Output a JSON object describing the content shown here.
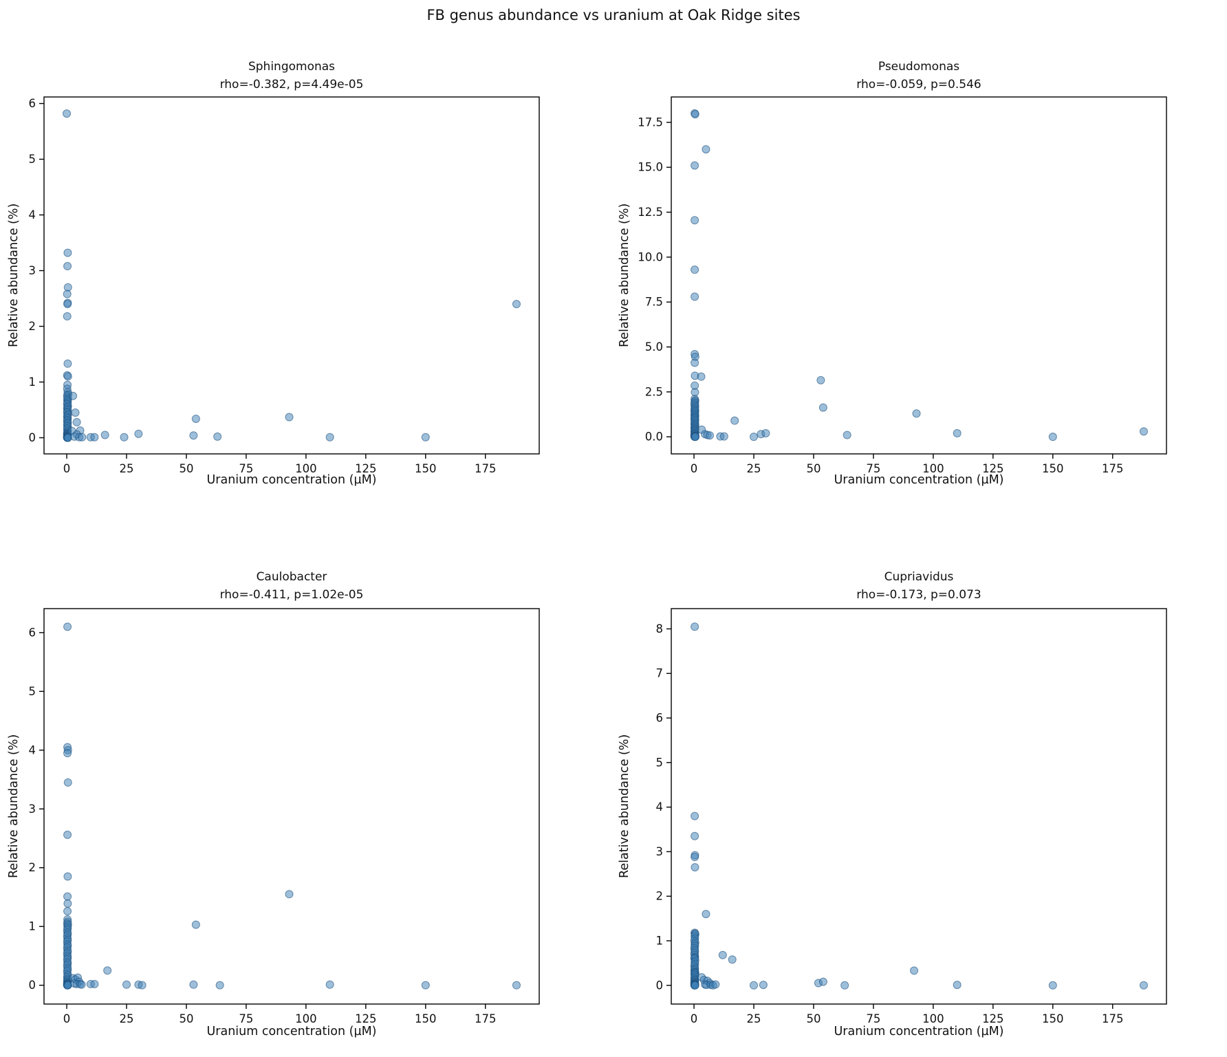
{
  "figure": {
    "title": "FB genus abundance vs uranium at Oak Ridge sites"
  },
  "style": {
    "marker_fill": "#3d7fb5",
    "marker_fill_opacity": 0.5,
    "marker_edge": "#1c4f7c",
    "marker_edge_opacity": 0.6,
    "spine_color": "#000000",
    "text_color": "#111111",
    "background": "#ffffff"
  },
  "chart_data": [
    {
      "type": "scatter",
      "title": "Sphingomonas",
      "subtitle": "rho=-0.382, p=4.49e-05",
      "rho": -0.382,
      "p_value": "4.49e-05",
      "xlabel": "Uranium concentration (µM)",
      "ylabel": "Relative abundance (%)",
      "xlim": [
        -9.5,
        197.5
      ],
      "ylim": [
        -0.29,
        6.13
      ],
      "xticks": [
        0,
        25,
        50,
        75,
        100,
        125,
        150,
        175
      ],
      "xtick_labels": [
        "0",
        "25",
        "50",
        "75",
        "100",
        "125",
        "150",
        "175"
      ],
      "yticks": [
        0,
        1,
        2,
        3,
        4,
        5,
        6
      ],
      "ytick_labels": [
        "0",
        "1",
        "2",
        "3",
        "4",
        "5",
        "6"
      ],
      "grid": false,
      "points": [
        [
          0,
          5.82
        ],
        [
          0.4,
          3.32
        ],
        [
          0.3,
          3.08
        ],
        [
          0.5,
          2.7
        ],
        [
          0.2,
          2.58
        ],
        [
          0.4,
          2.42
        ],
        [
          0.3,
          2.4
        ],
        [
          0.2,
          2.18
        ],
        [
          0.4,
          1.33
        ],
        [
          0.2,
          1.12
        ],
        [
          0.5,
          1.1
        ],
        [
          0.3,
          0.95
        ],
        [
          0.2,
          0.88
        ],
        [
          0.4,
          0.82
        ],
        [
          0.6,
          0.78
        ],
        [
          0.2,
          0.76
        ],
        [
          0.3,
          0.73
        ],
        [
          0.5,
          0.7
        ],
        [
          0.2,
          0.68
        ],
        [
          0.4,
          0.65
        ],
        [
          0.3,
          0.62
        ],
        [
          0.2,
          0.6
        ],
        [
          0.5,
          0.57
        ],
        [
          0.3,
          0.55
        ],
        [
          0.2,
          0.52
        ],
        [
          0.4,
          0.5
        ],
        [
          0.3,
          0.47
        ],
        [
          0.2,
          0.45
        ],
        [
          0.5,
          0.42
        ],
        [
          0.3,
          0.4
        ],
        [
          0.2,
          0.37
        ],
        [
          0.4,
          0.35
        ],
        [
          0.3,
          0.32
        ],
        [
          0.2,
          0.3
        ],
        [
          0.4,
          0.27
        ],
        [
          0.3,
          0.25
        ],
        [
          0.2,
          0.22
        ],
        [
          0.4,
          0.2
        ],
        [
          0.3,
          0.17
        ],
        [
          0.2,
          0.15
        ],
        [
          0.4,
          0.12
        ],
        [
          0.3,
          0.1
        ],
        [
          0.2,
          0.08
        ],
        [
          0.3,
          0.07
        ],
        [
          0.2,
          0.06
        ],
        [
          0.4,
          0.05
        ],
        [
          0.3,
          0.04
        ],
        [
          0.2,
          0.03
        ],
        [
          0.3,
          0.02
        ],
        [
          0.2,
          0.02
        ],
        [
          0.4,
          0.01
        ],
        [
          0.3,
          0.01
        ],
        [
          0.2,
          0.005
        ],
        [
          0.3,
          0.005
        ],
        [
          0.2,
          0
        ],
        [
          0.3,
          0
        ],
        [
          0.4,
          0
        ],
        [
          0.5,
          0
        ],
        [
          2.6,
          0.75
        ],
        [
          3.6,
          0.45
        ],
        [
          4.2,
          0.28
        ],
        [
          2.2,
          0.12
        ],
        [
          5.6,
          0.13
        ],
        [
          4.2,
          0.06
        ],
        [
          3.2,
          0.02
        ],
        [
          5.2,
          0.01
        ],
        [
          6.4,
          0.01
        ],
        [
          10,
          0.01
        ],
        [
          11.6,
          0.01
        ],
        [
          16,
          0.05
        ],
        [
          24,
          0.01
        ],
        [
          30,
          0.07
        ],
        [
          53,
          0.04
        ],
        [
          54,
          0.34
        ],
        [
          63,
          0.02
        ],
        [
          93,
          0.37
        ],
        [
          110,
          0.01
        ],
        [
          150,
          0.01
        ],
        [
          188,
          2.4
        ]
      ]
    },
    {
      "type": "scatter",
      "title": "Pseudomonas",
      "subtitle": "rho=-0.059, p=0.546",
      "rho": -0.059,
      "p_value": "0.546",
      "xlabel": "Uranium concentration (µM)",
      "ylabel": "Relative abundance (%)",
      "xlim": [
        -9.5,
        197.5
      ],
      "ylim": [
        -0.95,
        18.95
      ],
      "xticks": [
        0,
        25,
        50,
        75,
        100,
        125,
        150,
        175
      ],
      "xtick_labels": [
        "0",
        "25",
        "50",
        "75",
        "100",
        "125",
        "150",
        "175"
      ],
      "yticks": [
        0,
        2.5,
        5,
        7.5,
        10,
        12.5,
        15,
        17.5
      ],
      "ytick_labels": [
        "0.0",
        "2.5",
        "5.0",
        "7.5",
        "10.0",
        "12.5",
        "15.0",
        "17.5"
      ],
      "grid": false,
      "points": [
        [
          0.3,
          18.0
        ],
        [
          0.5,
          17.95
        ],
        [
          5,
          16.0
        ],
        [
          0.3,
          15.1
        ],
        [
          0.3,
          12.05
        ],
        [
          0.3,
          9.3
        ],
        [
          0.3,
          7.8
        ],
        [
          0.3,
          4.6
        ],
        [
          0.5,
          4.45
        ],
        [
          0.3,
          4.12
        ],
        [
          0.4,
          3.4
        ],
        [
          3,
          3.35
        ],
        [
          0.3,
          2.85
        ],
        [
          0.4,
          2.48
        ],
        [
          0.3,
          2.1
        ],
        [
          0.5,
          2.02
        ],
        [
          0.3,
          1.95
        ],
        [
          0.4,
          1.88
        ],
        [
          0.2,
          1.8
        ],
        [
          0.5,
          1.72
        ],
        [
          0.3,
          1.64
        ],
        [
          0.4,
          1.56
        ],
        [
          0.2,
          1.5
        ],
        [
          0.5,
          1.44
        ],
        [
          0.3,
          1.38
        ],
        [
          0.4,
          1.3
        ],
        [
          0.2,
          1.24
        ],
        [
          0.5,
          1.18
        ],
        [
          0.3,
          1.12
        ],
        [
          0.4,
          1.06
        ],
        [
          0.2,
          1.0
        ],
        [
          0.5,
          0.94
        ],
        [
          0.3,
          0.88
        ],
        [
          0.4,
          0.8
        ],
        [
          0.2,
          0.74
        ],
        [
          0.5,
          0.68
        ],
        [
          0.3,
          0.62
        ],
        [
          0.4,
          0.56
        ],
        [
          0.2,
          0.5
        ],
        [
          0.5,
          0.45
        ],
        [
          0.3,
          0.4
        ],
        [
          0.4,
          0.35
        ],
        [
          0.2,
          0.3
        ],
        [
          0.5,
          0.25
        ],
        [
          0.3,
          0.2
        ],
        [
          0.4,
          0.16
        ],
        [
          0.2,
          0.12
        ],
        [
          0.5,
          0.08
        ],
        [
          0.3,
          0.05
        ],
        [
          0.4,
          0.03
        ],
        [
          0.2,
          0.02
        ],
        [
          0.5,
          0.01
        ],
        [
          0.3,
          0
        ],
        [
          0.4,
          0
        ],
        [
          0.6,
          0
        ],
        [
          3.2,
          0.4
        ],
        [
          4.6,
          0.15
        ],
        [
          5.6,
          0.1
        ],
        [
          6.6,
          0.08
        ],
        [
          11,
          0.02
        ],
        [
          12.6,
          0.02
        ],
        [
          17,
          0.9
        ],
        [
          25,
          0.0
        ],
        [
          28,
          0.15
        ],
        [
          30,
          0.2
        ],
        [
          53,
          3.15
        ],
        [
          54,
          1.63
        ],
        [
          64,
          0.1
        ],
        [
          93,
          1.3
        ],
        [
          110,
          0.2
        ],
        [
          150,
          0.0
        ],
        [
          188,
          0.3
        ]
      ]
    },
    {
      "type": "scatter",
      "title": "Caulobacter",
      "subtitle": "rho=-0.411, p=1.02e-05",
      "rho": -0.411,
      "p_value": "1.02e-05",
      "xlabel": "Uranium concentration (µM)",
      "ylabel": "Relative abundance (%)",
      "xlim": [
        -9.5,
        197.5
      ],
      "ylim": [
        -0.32,
        6.42
      ],
      "xticks": [
        0,
        25,
        50,
        75,
        100,
        125,
        150,
        175
      ],
      "xtick_labels": [
        "0",
        "25",
        "50",
        "75",
        "100",
        "125",
        "150",
        "175"
      ],
      "yticks": [
        0,
        1,
        2,
        3,
        4,
        5,
        6
      ],
      "ytick_labels": [
        "0",
        "1",
        "2",
        "3",
        "4",
        "5",
        "6"
      ],
      "grid": false,
      "points": [
        [
          0.3,
          6.1
        ],
        [
          0.3,
          4.05
        ],
        [
          0.5,
          4.0
        ],
        [
          0.3,
          3.95
        ],
        [
          0.5,
          3.45
        ],
        [
          0.3,
          2.56
        ],
        [
          0.4,
          1.85
        ],
        [
          0.3,
          1.51
        ],
        [
          0.4,
          1.39
        ],
        [
          0.3,
          1.26
        ],
        [
          0.3,
          1.12
        ],
        [
          0.4,
          1.08
        ],
        [
          0.2,
          1.05
        ],
        [
          0.5,
          1.03
        ],
        [
          0.3,
          1.0
        ],
        [
          0.4,
          0.97
        ],
        [
          0.2,
          0.94
        ],
        [
          0.3,
          0.9
        ],
        [
          0.4,
          0.87
        ],
        [
          0.2,
          0.84
        ],
        [
          0.3,
          0.8
        ],
        [
          0.4,
          0.77
        ],
        [
          0.2,
          0.74
        ],
        [
          0.3,
          0.7
        ],
        [
          0.4,
          0.67
        ],
        [
          0.2,
          0.64
        ],
        [
          0.3,
          0.6
        ],
        [
          0.4,
          0.57
        ],
        [
          0.2,
          0.54
        ],
        [
          0.3,
          0.5
        ],
        [
          0.4,
          0.47
        ],
        [
          0.2,
          0.44
        ],
        [
          0.3,
          0.4
        ],
        [
          0.4,
          0.37
        ],
        [
          0.2,
          0.34
        ],
        [
          0.3,
          0.3
        ],
        [
          0.4,
          0.27
        ],
        [
          0.2,
          0.24
        ],
        [
          0.3,
          0.2
        ],
        [
          0.4,
          0.17
        ],
        [
          0.2,
          0.14
        ],
        [
          0.3,
          0.11
        ],
        [
          0.4,
          0.09
        ],
        [
          0.2,
          0.07
        ],
        [
          0.3,
          0.05
        ],
        [
          0.4,
          0.04
        ],
        [
          0.2,
          0.03
        ],
        [
          0.3,
          0.02
        ],
        [
          0.2,
          0.01
        ],
        [
          0.4,
          0.01
        ],
        [
          0.3,
          0
        ],
        [
          0.2,
          0
        ],
        [
          0.4,
          0
        ],
        [
          0.5,
          0
        ],
        [
          2.6,
          0.12
        ],
        [
          3.6,
          0.1
        ],
        [
          4.6,
          0.13
        ],
        [
          5.2,
          0.06
        ],
        [
          3.2,
          0.03
        ],
        [
          4.2,
          0.02
        ],
        [
          5.6,
          0.02
        ],
        [
          6.2,
          0.01
        ],
        [
          10,
          0.02
        ],
        [
          11.6,
          0.02
        ],
        [
          17,
          0.25
        ],
        [
          25,
          0.01
        ],
        [
          30,
          0.01
        ],
        [
          31.5,
          0
        ],
        [
          53,
          0.01
        ],
        [
          54,
          1.03
        ],
        [
          64,
          0
        ],
        [
          93,
          1.55
        ],
        [
          110,
          0.01
        ],
        [
          150,
          0
        ],
        [
          188,
          0
        ]
      ]
    },
    {
      "type": "scatter",
      "title": "Cupriavidus",
      "subtitle": "rho=-0.173, p=0.073",
      "rho": -0.173,
      "p_value": "0.073",
      "xlabel": "Uranium concentration (µM)",
      "ylabel": "Relative abundance (%)",
      "xlim": [
        -9.5,
        197.5
      ],
      "ylim": [
        -0.42,
        8.47
      ],
      "xticks": [
        0,
        25,
        50,
        75,
        100,
        125,
        150,
        175
      ],
      "xtick_labels": [
        "0",
        "25",
        "50",
        "75",
        "100",
        "125",
        "150",
        "175"
      ],
      "yticks": [
        0,
        1,
        2,
        3,
        4,
        5,
        6,
        7,
        8
      ],
      "ytick_labels": [
        "0",
        "1",
        "2",
        "3",
        "4",
        "5",
        "6",
        "7",
        "8"
      ],
      "grid": false,
      "points": [
        [
          0.3,
          8.05
        ],
        [
          0.3,
          3.8
        ],
        [
          0.3,
          3.35
        ],
        [
          0.4,
          2.92
        ],
        [
          0.3,
          2.88
        ],
        [
          0.4,
          2.65
        ],
        [
          5,
          1.6
        ],
        [
          0.3,
          1.18
        ],
        [
          0.4,
          1.16
        ],
        [
          0.5,
          1.14
        ],
        [
          0.3,
          1.1
        ],
        [
          0.4,
          1.05
        ],
        [
          0.2,
          1.0
        ],
        [
          0.5,
          0.96
        ],
        [
          0.3,
          0.92
        ],
        [
          0.4,
          0.88
        ],
        [
          0.2,
          0.84
        ],
        [
          0.3,
          0.8
        ],
        [
          0.4,
          0.76
        ],
        [
          0.2,
          0.72
        ],
        [
          0.3,
          0.68
        ],
        [
          0.4,
          0.64
        ],
        [
          0.3,
          0.62
        ],
        [
          0.2,
          0.6
        ],
        [
          0.5,
          0.56
        ],
        [
          0.3,
          0.52
        ],
        [
          0.4,
          0.48
        ],
        [
          0.2,
          0.44
        ],
        [
          0.3,
          0.4
        ],
        [
          0.4,
          0.37
        ],
        [
          0.2,
          0.34
        ],
        [
          0.3,
          0.31
        ],
        [
          0.4,
          0.29
        ],
        [
          0.5,
          0.28
        ],
        [
          0.2,
          0.26
        ],
        [
          0.3,
          0.23
        ],
        [
          0.4,
          0.2
        ],
        [
          0.2,
          0.17
        ],
        [
          0.3,
          0.14
        ],
        [
          0.4,
          0.12
        ],
        [
          0.2,
          0.1
        ],
        [
          0.3,
          0.08
        ],
        [
          0.4,
          0.06
        ],
        [
          0.2,
          0.05
        ],
        [
          0.3,
          0.04
        ],
        [
          0.4,
          0.03
        ],
        [
          0.2,
          0.02
        ],
        [
          0.3,
          0.01
        ],
        [
          0.4,
          0.01
        ],
        [
          0.2,
          0
        ],
        [
          0.3,
          0
        ],
        [
          0.5,
          0
        ],
        [
          3.2,
          0.18
        ],
        [
          4.2,
          0.12
        ],
        [
          5.6,
          0.1
        ],
        [
          6.6,
          0.05
        ],
        [
          4.6,
          0.02
        ],
        [
          5.2,
          0.01
        ],
        [
          7,
          0.01
        ],
        [
          8,
          0
        ],
        [
          9,
          0.02
        ],
        [
          12,
          0.68
        ],
        [
          16,
          0.58
        ],
        [
          25,
          0
        ],
        [
          29,
          0.01
        ],
        [
          52,
          0.05
        ],
        [
          54,
          0.08
        ],
        [
          63,
          0
        ],
        [
          92,
          0.33
        ],
        [
          110,
          0.01
        ],
        [
          150,
          0
        ],
        [
          188,
          0
        ]
      ]
    }
  ]
}
